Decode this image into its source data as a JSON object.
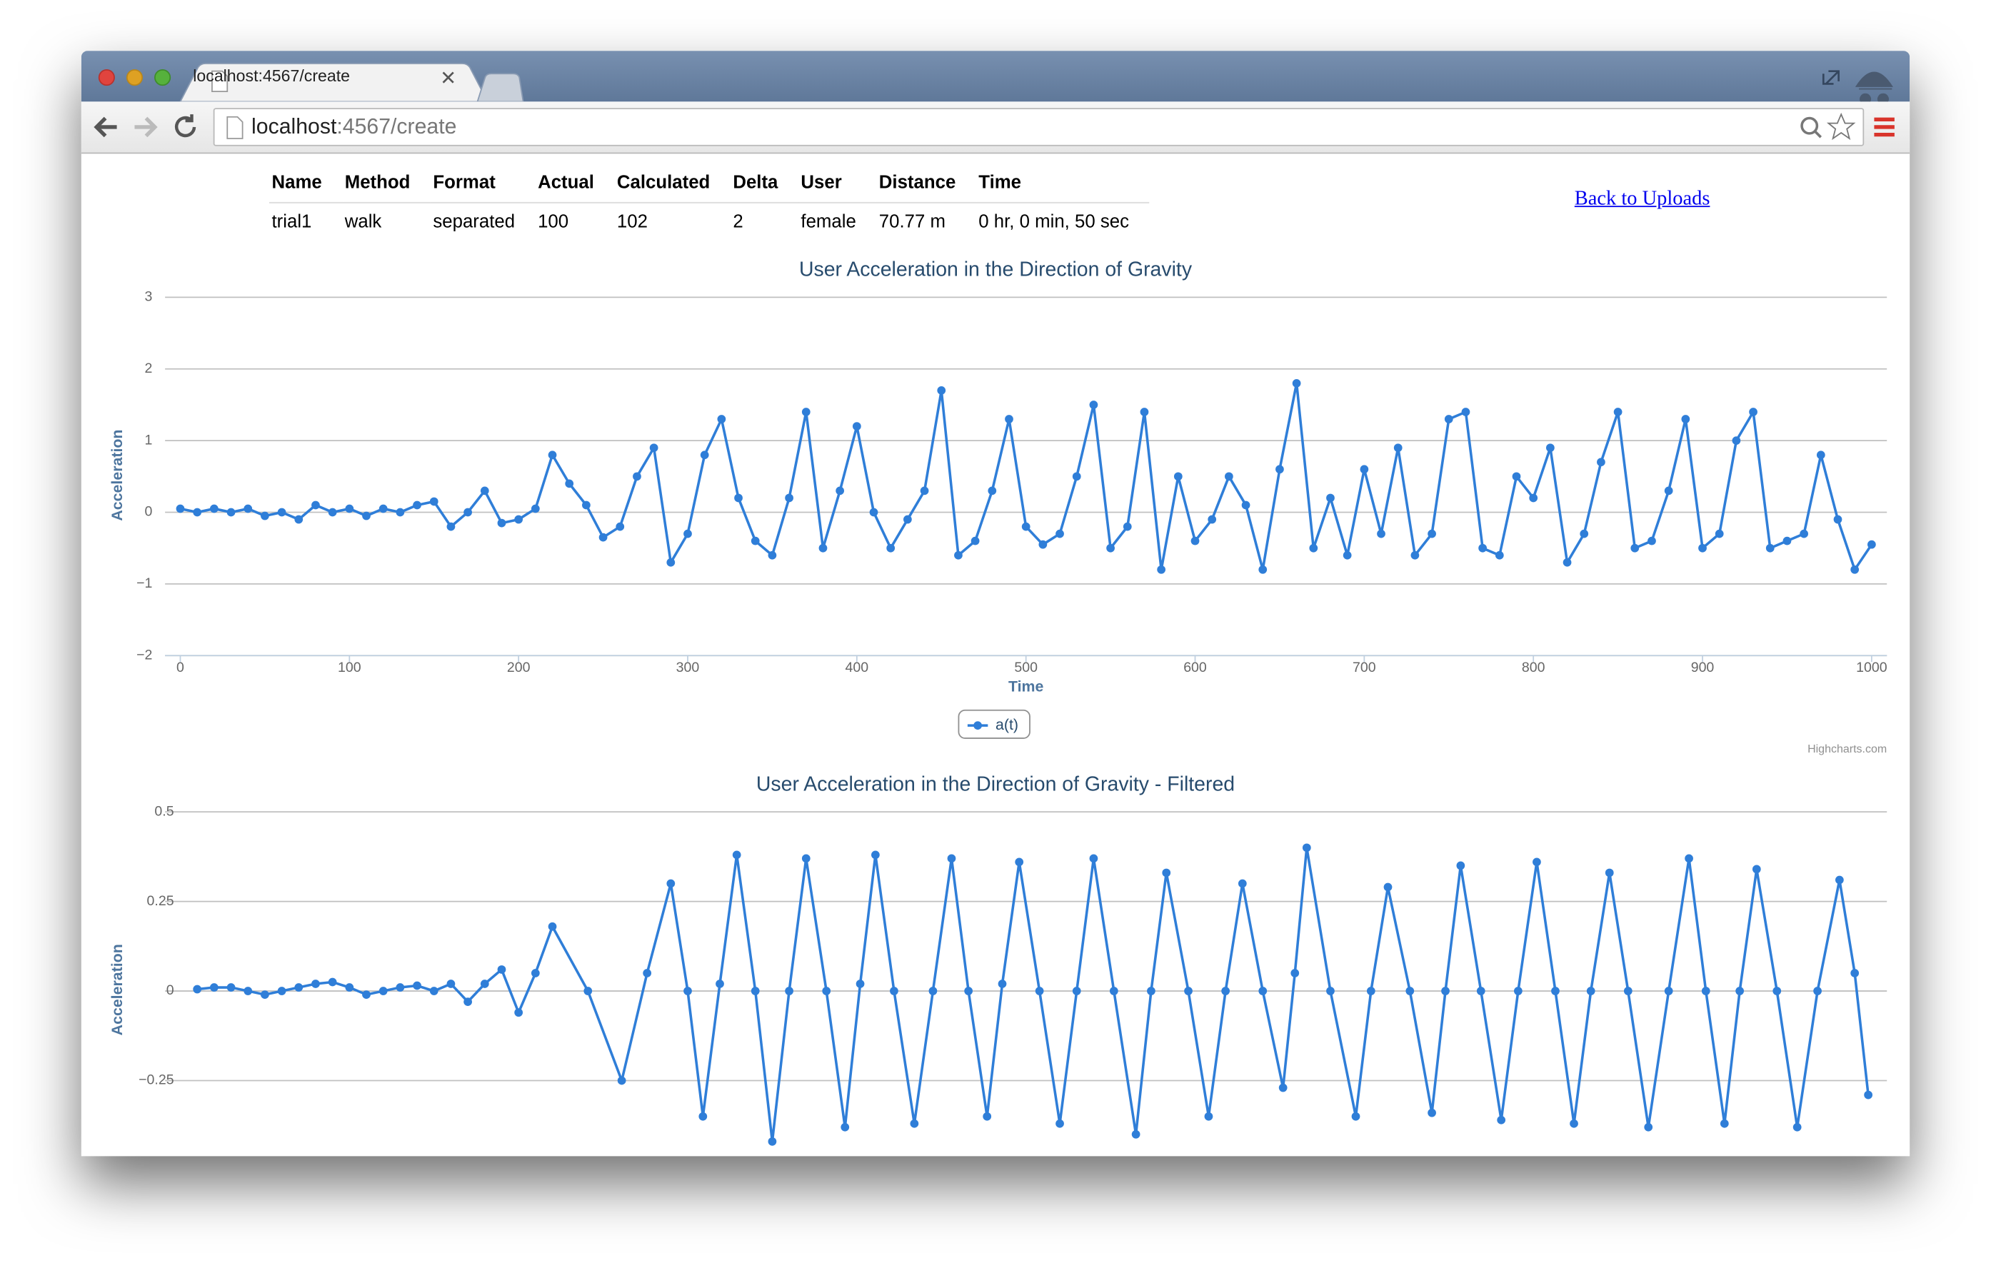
{
  "browser": {
    "tab_title": "localhost:4567/create",
    "url_host": "localhost",
    "url_path": ":4567/create"
  },
  "table": {
    "headers": [
      "Name",
      "Method",
      "Format",
      "Actual",
      "Calculated",
      "Delta",
      "User",
      "Distance",
      "Time"
    ],
    "rows": [
      [
        "trial1",
        "walk",
        "separated",
        "100",
        "102",
        "2",
        "female",
        "70.77 m",
        "0 hr, 0 min, 50 sec"
      ]
    ]
  },
  "link": "Back to Uploads",
  "chart_data": [
    {
      "type": "line",
      "title": "User Acceleration in the Direction of Gravity",
      "x_label": "Time",
      "y_label": "Acceleration",
      "x": [
        0,
        10,
        20,
        30,
        40,
        50,
        60,
        70,
        80,
        90,
        100,
        110,
        120,
        130,
        140,
        150,
        160,
        170,
        180,
        190,
        200,
        210,
        220,
        230,
        240,
        250,
        260,
        270,
        280,
        290,
        300,
        310,
        320,
        330,
        340,
        350,
        360,
        370,
        380,
        390,
        400,
        410,
        420,
        430,
        440,
        450,
        460,
        470,
        480,
        490,
        500,
        510,
        520,
        530,
        540,
        550,
        560,
        570,
        580,
        590,
        600,
        610,
        620,
        630,
        640,
        650,
        660,
        670,
        680,
        690,
        700,
        710,
        720,
        730,
        740,
        750,
        760,
        770,
        780,
        790,
        800,
        810,
        820,
        830,
        840,
        850,
        860,
        870,
        880,
        890,
        900,
        910,
        920,
        930,
        940,
        950,
        960,
        970,
        980,
        990,
        1000
      ],
      "series": [
        {
          "name": "a(t)",
          "color": "#2f7ed8",
          "values": [
            0.05,
            0.0,
            0.05,
            0.0,
            0.05,
            -0.05,
            0.0,
            -0.1,
            0.1,
            0.0,
            0.05,
            -0.05,
            0.05,
            0.0,
            0.1,
            0.15,
            -0.2,
            0.0,
            0.3,
            -0.15,
            -0.1,
            0.05,
            0.8,
            0.4,
            0.1,
            -0.35,
            -0.2,
            0.5,
            0.9,
            -0.7,
            -0.3,
            0.8,
            1.3,
            0.2,
            -0.4,
            -0.6,
            0.2,
            1.4,
            -0.5,
            0.3,
            1.2,
            0.0,
            -0.5,
            -0.1,
            0.3,
            1.7,
            -0.6,
            -0.4,
            0.3,
            1.3,
            -0.2,
            -0.45,
            -0.3,
            0.5,
            1.5,
            -0.5,
            -0.2,
            1.4,
            -0.8,
            0.5,
            -0.4,
            -0.1,
            0.5,
            0.1,
            -0.8,
            0.6,
            1.8,
            -0.5,
            0.2,
            -0.6,
            0.6,
            -0.3,
            0.9,
            -0.6,
            -0.3,
            1.3,
            1.4,
            -0.5,
            -0.6,
            0.5,
            0.2,
            0.9,
            -0.7,
            -0.3,
            0.7,
            1.4,
            -0.5,
            -0.4,
            0.3,
            1.3,
            -0.5,
            -0.3,
            1.0,
            1.4,
            -0.5,
            -0.4,
            -0.3,
            0.8,
            -0.1,
            -0.8,
            -0.45
          ]
        }
      ],
      "xlim": [
        0,
        1000
      ],
      "xticks": [
        0,
        100,
        200,
        300,
        400,
        500,
        600,
        700,
        800,
        900,
        1000
      ],
      "ylim": [
        -2,
        3
      ],
      "yticks": [
        {
          "value": -2,
          "label": "−2"
        },
        {
          "value": -1,
          "label": "−1"
        },
        0,
        1,
        2,
        3
      ],
      "grid": true,
      "markers": true,
      "legend": "bottom",
      "credit": "Highcharts.com"
    },
    {
      "type": "line",
      "title": "User Acceleration in the Direction of Gravity - Filtered",
      "y_label": "Acceleration",
      "x": [
        10,
        20,
        30,
        40,
        50,
        60,
        70,
        80,
        90,
        100,
        110,
        120,
        130,
        140,
        150,
        160,
        170,
        180,
        190,
        200,
        210,
        220,
        241,
        261,
        276,
        290,
        300,
        309,
        319,
        329,
        340,
        350,
        360,
        370,
        382,
        393,
        402,
        411,
        422,
        434,
        445,
        456,
        466,
        477,
        486,
        496,
        508,
        520,
        530,
        540,
        552,
        565,
        574,
        583,
        596,
        608,
        618,
        628,
        640,
        652,
        659,
        666,
        680,
        695,
        704,
        714,
        727,
        740,
        748,
        757,
        769,
        781,
        791,
        802,
        813,
        824,
        834,
        845,
        856,
        868,
        880,
        892,
        902,
        913,
        922,
        932,
        944,
        956,
        968,
        981,
        990,
        998
      ],
      "series": [
        {
          "color": "#2f7ed8",
          "values": [
            0.005,
            0.01,
            0.01,
            0.0,
            -0.01,
            0.0,
            0.01,
            0.02,
            0.025,
            0.01,
            -0.01,
            0.0,
            0.01,
            0.015,
            0.0,
            0.02,
            -0.03,
            0.02,
            0.06,
            -0.06,
            0.05,
            0.18,
            0.0,
            -0.25,
            0.05,
            0.3,
            0.0,
            -0.35,
            0.02,
            0.38,
            0.0,
            -0.42,
            0.0,
            0.37,
            0.0,
            -0.38,
            0.02,
            0.38,
            0.0,
            -0.37,
            0.0,
            0.37,
            0.0,
            -0.35,
            0.02,
            0.36,
            0.0,
            -0.37,
            0.0,
            0.37,
            0.0,
            -0.4,
            0.0,
            0.33,
            0.0,
            -0.35,
            0.0,
            0.3,
            0.0,
            -0.27,
            0.05,
            0.4,
            0.0,
            -0.35,
            0.0,
            0.29,
            0.0,
            -0.34,
            0.0,
            0.35,
            0.0,
            -0.36,
            0.0,
            0.36,
            0.0,
            -0.37,
            0.0,
            0.33,
            0.0,
            -0.38,
            0.0,
            0.37,
            0.0,
            -0.37,
            0.0,
            0.34,
            0.0,
            -0.38,
            0.0,
            0.31,
            0.05,
            -0.29
          ]
        }
      ],
      "xlim": [
        0,
        1000
      ],
      "ylim": [
        -0.5,
        0.5
      ],
      "yticks": [
        {
          "value": -0.25,
          "label": "−0.25"
        },
        0,
        0.25,
        0.5
      ],
      "grid": true,
      "markers": true
    }
  ]
}
